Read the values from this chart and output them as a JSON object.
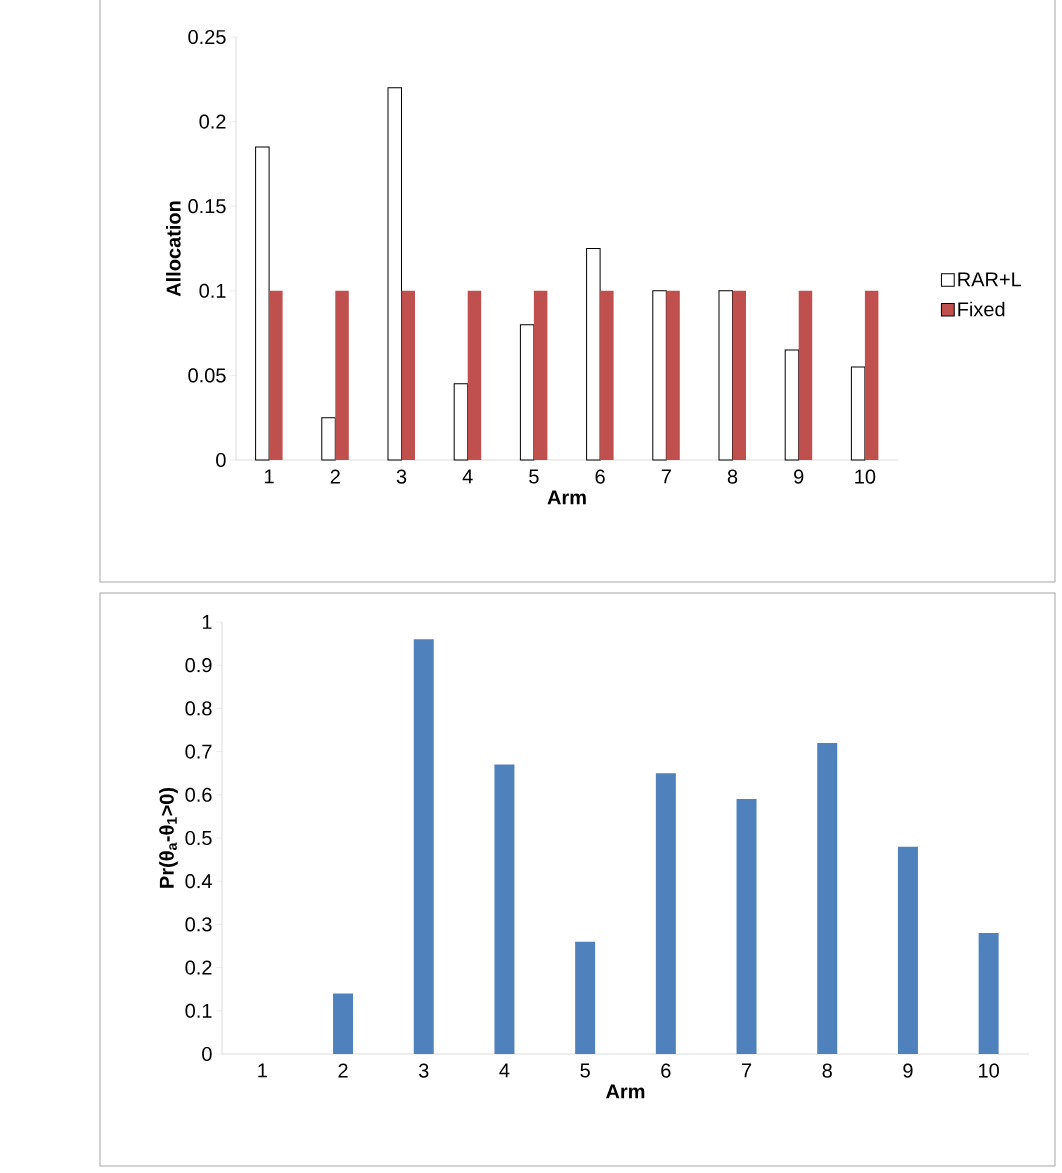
{
  "chart_data": [
    {
      "type": "bar",
      "xlabel": "Arm",
      "ylabel": "Allocation",
      "categories": [
        "1",
        "2",
        "3",
        "4",
        "5",
        "6",
        "7",
        "8",
        "9",
        "10"
      ],
      "series": [
        {
          "name": "RAR+L",
          "color": "#ffffff",
          "values": [
            0.185,
            0.025,
            0.22,
            0.045,
            0.08,
            0.125,
            0.1,
            0.1,
            0.065,
            0.055
          ]
        },
        {
          "name": "Fixed",
          "color": "#c0504d",
          "values": [
            0.1,
            0.1,
            0.1,
            0.1,
            0.1,
            0.1,
            0.1,
            0.1,
            0.1,
            0.1
          ]
        }
      ],
      "ylim": [
        0,
        0.25
      ],
      "yticks": [
        0,
        0.05,
        0.1,
        0.15,
        0.2,
        0.25
      ],
      "legend": "right"
    },
    {
      "type": "bar",
      "xlabel": "Arm",
      "ylabel": "Pr(θ$_{a}$-θ$_{1}$>0)",
      "categories": [
        "1",
        "2",
        "3",
        "4",
        "5",
        "6",
        "7",
        "8",
        "9",
        "10"
      ],
      "values": [
        0,
        0.14,
        0.96,
        0.67,
        0.26,
        0.65,
        0.59,
        0.72,
        0.48,
        0.28
      ],
      "color": "#4f81bd",
      "ylim": [
        0,
        1
      ],
      "yticks": [
        0,
        0.1,
        0.2,
        0.3,
        0.4,
        0.5,
        0.6,
        0.7,
        0.8,
        0.9,
        1
      ]
    }
  ]
}
